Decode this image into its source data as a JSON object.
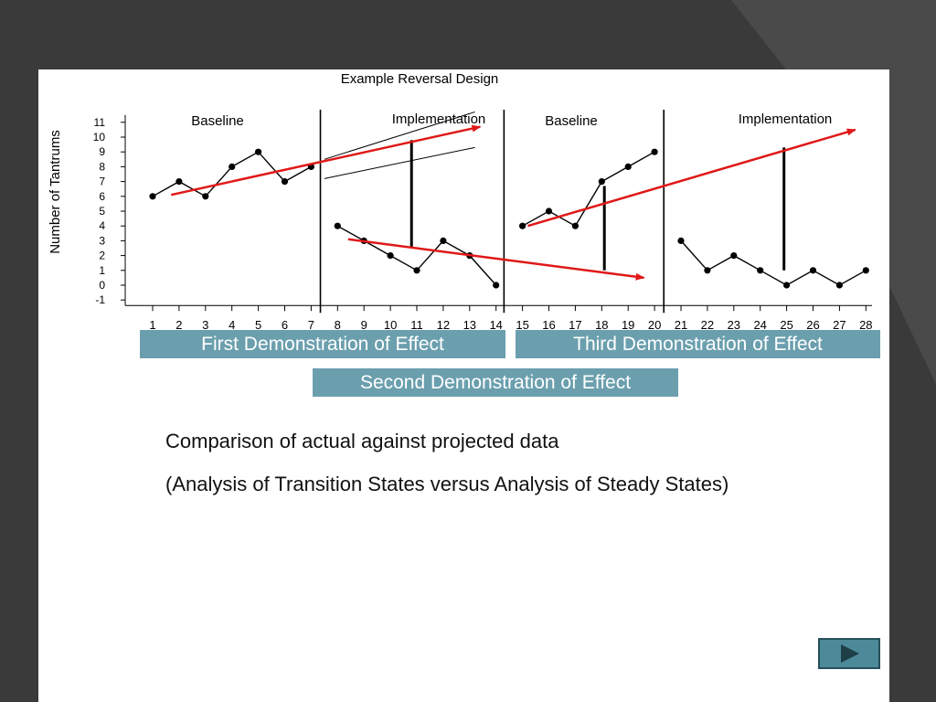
{
  "chart_data": {
    "type": "line",
    "title": "Example Reversal Design",
    "ylabel": "Number of Tantrums",
    "xlabel": "",
    "ylim": [
      -1,
      11
    ],
    "xlim": [
      1,
      28
    ],
    "yticks": [
      11,
      10,
      9,
      8,
      7,
      6,
      5,
      4,
      3,
      2,
      1,
      0,
      -1
    ],
    "xticks": [
      1,
      2,
      3,
      4,
      5,
      6,
      7,
      8,
      9,
      10,
      11,
      12,
      13,
      14,
      15,
      16,
      17,
      18,
      19,
      20,
      21,
      22,
      23,
      24,
      25,
      26,
      27,
      28
    ],
    "phases": [
      {
        "label": "Baseline",
        "start": 1,
        "end": 7
      },
      {
        "label": "Implementation",
        "start": 8,
        "end": 14
      },
      {
        "label": "Baseline",
        "start": 15,
        "end": 20
      },
      {
        "label": "Implementation",
        "start": 21,
        "end": 28
      }
    ],
    "phase_change_after": [
      7.35,
      14.3,
      20.35
    ],
    "series": [
      {
        "x": [
          1,
          2,
          3,
          4,
          5,
          6,
          7
        ],
        "values": [
          6,
          7,
          6,
          8,
          9,
          7,
          8
        ]
      },
      {
        "x": [
          8,
          9,
          10,
          11,
          12,
          13,
          14
        ],
        "values": [
          4,
          3,
          2,
          1,
          3,
          2,
          0
        ]
      },
      {
        "x": [
          15,
          16,
          17,
          18,
          19,
          20
        ],
        "values": [
          4,
          5,
          4,
          7,
          8,
          9
        ]
      },
      {
        "x": [
          21,
          22,
          23,
          24,
          25,
          26,
          27,
          28
        ],
        "values": [
          3,
          1,
          2,
          1,
          0,
          1,
          0,
          1
        ]
      }
    ],
    "trend_arrows": [
      {
        "from": [
          1.7,
          6.1
        ],
        "to": [
          13.4,
          10.7
        ]
      },
      {
        "from": [
          8.4,
          3.1
        ],
        "to": [
          19.6,
          0.5
        ]
      },
      {
        "from": [
          15.2,
          4.0
        ],
        "to": [
          27.6,
          10.5
        ]
      }
    ],
    "projection_lines": [
      {
        "from": [
          7.5,
          8.5
        ],
        "to": [
          13.2,
          11.7
        ]
      },
      {
        "from": [
          7.5,
          7.2
        ],
        "to": [
          13.2,
          9.3
        ]
      }
    ],
    "effect_bars": [
      {
        "x": 10.8,
        "top": 9.8,
        "bottom": 2.5
      },
      {
        "x": 18.1,
        "top": 6.7,
        "bottom": 1.0
      },
      {
        "x": 24.9,
        "top": 9.3,
        "bottom": 1.0
      }
    ],
    "colors": {
      "trend": "#e01818",
      "data": "#000000"
    }
  },
  "demo_labels": {
    "first": "First Demonstration of Effect",
    "second": "Second Demonstration of Effect",
    "third": "Third Demonstration of Effect"
  },
  "caption": {
    "line1": "Comparison of actual against projected data",
    "line2": "(Analysis of Transition States versus Analysis of Steady States)"
  },
  "nav": {
    "icon": "play-arrow-icon"
  }
}
